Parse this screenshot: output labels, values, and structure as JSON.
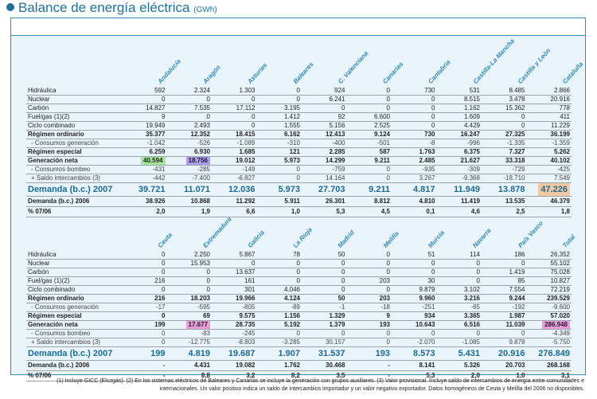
{
  "title": "Balance de energía eléctrica",
  "unit": "(GWh)",
  "highlight_colors": {
    "green": "#a6e89a",
    "purple": "#ab9cf0",
    "orange": "#f2c9a0",
    "pink": "#eb9bdc"
  },
  "tables": [
    {
      "columns": [
        "Andalucía",
        "Aragón",
        "Asturias",
        "Baleares",
        "C. Valenciana",
        "Canarias",
        "Cantabria",
        "Castilla-La Mancha",
        "Castilla y León",
        "Cataluña"
      ],
      "rows": [
        {
          "label": "Hidráulica",
          "style": "",
          "values": [
            "592",
            "2.324",
            "1.303",
            "0",
            "924",
            "0",
            "730",
            "531",
            "8.485",
            "2.866"
          ]
        },
        {
          "label": "Nuclear",
          "style": "",
          "values": [
            "0",
            "0",
            "0",
            "0",
            "6.241",
            "0",
            "0",
            "8.515",
            "3.478",
            "20.916"
          ]
        },
        {
          "label": "Carbón",
          "style": "",
          "values": [
            "14.827",
            "7.535",
            "17.112",
            "3.195",
            "0",
            "0",
            "0",
            "1.162",
            "15.362",
            "778"
          ]
        },
        {
          "label": "Fuel/gas (1)(2)",
          "style": "",
          "values": [
            "9",
            "0",
            "0",
            "1.412",
            "92",
            "6.600",
            "0",
            "1.609",
            "0",
            "411"
          ]
        },
        {
          "label": "Ciclo combinado",
          "style": "",
          "values": [
            "19.949",
            "2.493",
            "0",
            "1.555",
            "5.156",
            "2.525",
            "0",
            "4.429",
            "0",
            "11.229"
          ]
        },
        {
          "label": "Régimen ordinario",
          "style": "bold",
          "values": [
            "35.377",
            "12.352",
            "18.415",
            "6.162",
            "12.413",
            "9.124",
            "730",
            "16.247",
            "27.325",
            "36.199"
          ]
        },
        {
          "label": "- Consumos generación",
          "style": "sub",
          "values": [
            "-1.042",
            "-526",
            "-1.089",
            "-310",
            "-400",
            "-501",
            "-8",
            "-996",
            "-1.335",
            "-1.359"
          ]
        },
        {
          "label": "Régimen especial",
          "style": "bold",
          "values": [
            "6.259",
            "6.930",
            "1.685",
            "121",
            "2.285",
            "587",
            "1.763",
            "6.375",
            "7.327",
            "5.262"
          ]
        },
        {
          "label": "Generación neta",
          "style": "bold",
          "values": [
            "40.594",
            "18.756",
            "19.012",
            "5.973",
            "14.299",
            "9.211",
            "2.485",
            "21.627",
            "33.318",
            "40.102"
          ],
          "highlights": {
            "0": "green",
            "1": "purple"
          }
        },
        {
          "label": "- Consumos bombeo",
          "style": "sub",
          "values": [
            "-431",
            "-285",
            "-149",
            "0",
            "-759",
            "0",
            "-935",
            "-309",
            "-729",
            "-425"
          ]
        },
        {
          "label": "+ Saldo intercambios (3)",
          "style": "sub",
          "values": [
            "-442",
            "-7.400",
            "-6.827",
            "0",
            "14.164",
            "0",
            "3.267",
            "-9.368",
            "-18.710",
            "7.549"
          ]
        },
        {
          "label": "Demanda (b.c.) 2007",
          "style": "dem",
          "values": [
            "39.721",
            "11.071",
            "12.036",
            "5.973",
            "27.703",
            "9.211",
            "4.817",
            "11.949",
            "13.878",
            "47.226"
          ],
          "highlights": {
            "9": "orange"
          }
        },
        {
          "label": "Demanda (b.c.) 2006",
          "style": "dem06",
          "values": [
            "38.926",
            "10.868",
            "11.292",
            "5.911",
            "26.301",
            "8.812",
            "4.810",
            "11.419",
            "13.535",
            "46.379"
          ]
        },
        {
          "label": "% 07/06",
          "style": "dem06",
          "values": [
            "2,0",
            "1,9",
            "6,6",
            "1,0",
            "5,3",
            "4,5",
            "0,1",
            "4,6",
            "2,5",
            "1,8"
          ]
        }
      ]
    },
    {
      "columns": [
        "Ceuta",
        "Extremadura",
        "Galicia",
        "La Rioja",
        "Madrid",
        "Melilla",
        "Murcia",
        "Navarra",
        "País Vasco",
        "Total"
      ],
      "rows": [
        {
          "label": "Hidráulica",
          "style": "",
          "values": [
            "0",
            "2.250",
            "5.867",
            "78",
            "50",
            "0",
            "51",
            "114",
            "186",
            "26.352"
          ]
        },
        {
          "label": "Nuclear",
          "style": "",
          "values": [
            "0",
            "15.953",
            "0",
            "0",
            "0",
            "0",
            "0",
            "0",
            "0",
            "55.102"
          ]
        },
        {
          "label": "Carbón",
          "style": "",
          "values": [
            "0",
            "0",
            "13.637",
            "0",
            "0",
            "0",
            "0",
            "0",
            "1.419",
            "75.028"
          ]
        },
        {
          "label": "Fuel/gas (1)(2)",
          "style": "",
          "values": [
            "216",
            "0",
            "161",
            "0",
            "0",
            "203",
            "30",
            "0",
            "85",
            "10.827"
          ]
        },
        {
          "label": "Ciclo combinado",
          "style": "",
          "values": [
            "0",
            "0",
            "301",
            "4.046",
            "0",
            "0",
            "9.879",
            "3.102",
            "7.554",
            "72.219"
          ]
        },
        {
          "label": "Régimen ordinario",
          "style": "bold",
          "values": [
            "216",
            "18.203",
            "19.966",
            "4.124",
            "50",
            "203",
            "9.960",
            "3.216",
            "9.244",
            "239.529"
          ]
        },
        {
          "label": "- Consumos generación",
          "style": "sub",
          "values": [
            "-17",
            "-595",
            "-805",
            "-89",
            "-1",
            "-18",
            "-251",
            "-65",
            "-192",
            "-9.600"
          ]
        },
        {
          "label": "Régimen especial",
          "style": "bold",
          "values": [
            "0",
            "69",
            "9.575",
            "1.156",
            "1.329",
            "9",
            "934",
            "3.365",
            "1.987",
            "57.020"
          ]
        },
        {
          "label": "Generación neta",
          "style": "bold",
          "values": [
            "199",
            "17.677",
            "28.735",
            "5.192",
            "1.379",
            "193",
            "10.643",
            "6.516",
            "11.039",
            "286.948"
          ],
          "highlights": {
            "1": "pink",
            "9": "pink"
          }
        },
        {
          "label": "- Consumos bombeo",
          "style": "sub",
          "values": [
            "0",
            "-83",
            "-245",
            "0",
            "0",
            "0",
            "0",
            "0",
            "0",
            "-4.349"
          ]
        },
        {
          "label": "+ Saldo intercambios (3)",
          "style": "sub",
          "values": [
            "0",
            "-12.775",
            "-8.803",
            "-3.285",
            "30.157",
            "0",
            "-2.070",
            "-1.085",
            "9.878",
            "-5.750"
          ]
        },
        {
          "label": "Demanda (b.c.) 2007",
          "style": "dem",
          "values": [
            "199",
            "4.819",
            "19.687",
            "1.907",
            "31.537",
            "193",
            "8.573",
            "5.431",
            "20.916",
            "276.849"
          ]
        },
        {
          "label": "Demanda (b.c.) 2006",
          "style": "dem06",
          "values": [
            "-",
            "4.431",
            "19.082",
            "1.762",
            "30.468",
            "-",
            "8.141",
            "5.326",
            "20.703",
            "268.168"
          ]
        },
        {
          "label": "% 07/06",
          "style": "dem06",
          "values": [
            "-",
            "8,8",
            "3,2",
            "8,2",
            "3,5",
            "-",
            "5,3",
            "2,0",
            "1,0",
            "3,1"
          ]
        }
      ]
    }
  ],
  "footnote_line1": "(1) Incluye GICC (Elcogás). (2) En los sistemas eléctricos de Baleares y Canarias se incluye la generación con grupos auxiliares. (3) Valor provisional. Incluye saldo de intercambios de energía entre comunidades e",
  "footnote_line2": "internacionales. Un valor positivo indica un saldo de intercambios importador y un valor negativo exportador. Datos homogéneos de Ceuta y Melilla del 2006 no disponibles."
}
